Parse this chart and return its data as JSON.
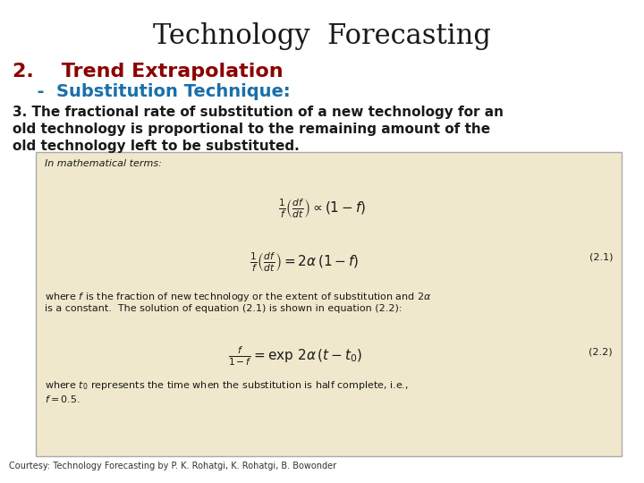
{
  "title": "Technology  Forecasting",
  "title_color": "#1a1a1a",
  "title_fontsize": 22,
  "heading2": "2.    Trend Extrapolation",
  "heading2_color": "#8B0000",
  "heading2_fontsize": 16,
  "subheading": "  -  Substitution Technique:",
  "subheading_color": "#1a6fa8",
  "subheading_fontsize": 14,
  "body_text_line1": "3. The fractional rate of substitution of a new technology for an",
  "body_text_line2": "old technology is proportional to the remaining amount of the",
  "body_text_line3": "old technology left to be substituted.",
  "body_fontsize": 11,
  "body_color": "#1a1a1a",
  "courtesy": "Courtesy: Technology Forecasting by P. K. Rohatgi, K. Rohatgi, B. Bowonder",
  "courtesy_fontsize": 7,
  "courtesy_color": "#333333",
  "box_bg": "#f0e8cc",
  "box_edge": "#aaaaaa",
  "background_color": "#ffffff"
}
